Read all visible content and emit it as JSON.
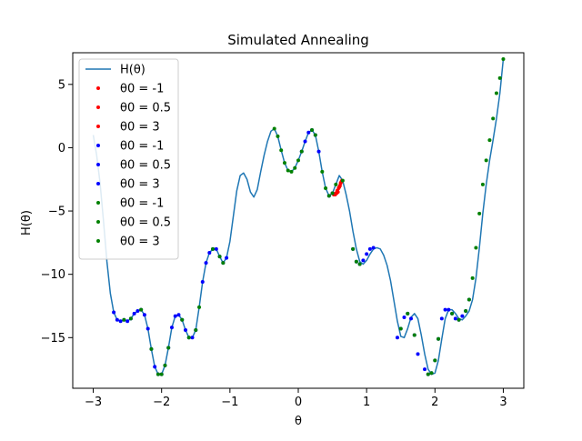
{
  "chart_data": {
    "type": "line",
    "title": "Simulated Annealing",
    "xlabel": "θ",
    "ylabel": "H(θ)",
    "xlim": [
      -3.3,
      3.3
    ],
    "ylim": [
      -19,
      7.5
    ],
    "xticks": [
      -3,
      -2,
      -1,
      0,
      1,
      2,
      3
    ],
    "yticks": [
      -15,
      -10,
      -5,
      0,
      5
    ],
    "grid": false,
    "legend_placement": "top-left",
    "curve": {
      "name": "H(θ)",
      "color": "#1f77b4",
      "x": [
        -3.0,
        -2.95,
        -2.9,
        -2.85,
        -2.8,
        -2.75,
        -2.7,
        -2.65,
        -2.6,
        -2.55,
        -2.5,
        -2.45,
        -2.4,
        -2.35,
        -2.3,
        -2.25,
        -2.2,
        -2.15,
        -2.1,
        -2.05,
        -2.0,
        -1.95,
        -1.9,
        -1.85,
        -1.8,
        -1.75,
        -1.7,
        -1.65,
        -1.6,
        -1.55,
        -1.5,
        -1.45,
        -1.4,
        -1.35,
        -1.3,
        -1.25,
        -1.2,
        -1.15,
        -1.1,
        -1.05,
        -1.0,
        -0.95,
        -0.9,
        -0.85,
        -0.8,
        -0.75,
        -0.7,
        -0.65,
        -0.6,
        -0.55,
        -0.5,
        -0.45,
        -0.4,
        -0.35,
        -0.3,
        -0.25,
        -0.2,
        -0.15,
        -0.1,
        -0.05,
        0.0,
        0.05,
        0.1,
        0.15,
        0.2,
        0.25,
        0.3,
        0.35,
        0.4,
        0.45,
        0.5,
        0.55,
        0.6,
        0.65,
        0.7,
        0.75,
        0.8,
        0.85,
        0.9,
        0.95,
        1.0,
        1.05,
        1.1,
        1.15,
        1.2,
        1.25,
        1.3,
        1.35,
        1.4,
        1.45,
        1.5,
        1.55,
        1.6,
        1.65,
        1.7,
        1.75,
        1.8,
        1.85,
        1.9,
        1.95,
        2.0,
        2.05,
        2.1,
        2.15,
        2.2,
        2.25,
        2.3,
        2.35,
        2.4,
        2.45,
        2.5,
        2.55,
        2.6,
        2.65,
        2.7,
        2.75,
        2.8,
        2.85,
        2.9,
        2.95,
        3.0
      ],
      "y": [
        1.0,
        -0.6,
        -2.8,
        -5.8,
        -9.0,
        -11.5,
        -13.0,
        -13.6,
        -13.7,
        -13.6,
        -13.7,
        -13.5,
        -13.1,
        -12.9,
        -12.8,
        -13.2,
        -14.3,
        -15.9,
        -17.3,
        -17.9,
        -17.9,
        -17.2,
        -15.8,
        -14.2,
        -13.3,
        -13.2,
        -13.6,
        -14.4,
        -15.0,
        -15.0,
        -14.4,
        -12.6,
        -10.6,
        -9.1,
        -8.3,
        -8.0,
        -8.0,
        -8.6,
        -9.1,
        -8.7,
        -7.4,
        -5.4,
        -3.4,
        -2.2,
        -2.0,
        -2.5,
        -3.5,
        -3.9,
        -3.3,
        -1.9,
        -0.6,
        0.5,
        1.3,
        1.5,
        0.9,
        -0.2,
        -1.2,
        -1.8,
        -1.9,
        -1.6,
        -1.0,
        -0.3,
        0.5,
        1.2,
        1.4,
        1.0,
        -0.3,
        -1.9,
        -3.2,
        -3.8,
        -3.6,
        -2.9,
        -2.2,
        -2.6,
        -3.7,
        -5.0,
        -6.6,
        -8.0,
        -9.0,
        -9.2,
        -8.9,
        -8.4,
        -8.0,
        -7.9,
        -8.0,
        -8.5,
        -9.3,
        -10.5,
        -12.1,
        -13.7,
        -14.9,
        -15.0,
        -14.3,
        -13.4,
        -13.1,
        -13.5,
        -14.8,
        -16.3,
        -17.5,
        -17.9,
        -17.8,
        -16.8,
        -15.1,
        -13.5,
        -12.8,
        -12.8,
        -13.1,
        -13.5,
        -13.6,
        -13.3,
        -12.9,
        -12.0,
        -10.3,
        -7.9,
        -5.2,
        -2.9,
        -1.0,
        0.6,
        2.3,
        4.3,
        7.0
      ],
      "width": 1.5
    },
    "series": [
      {
        "name": "θ0 = -1",
        "color": "#ff0000",
        "x": [
          0.5,
          0.52,
          0.55,
          0.57,
          0.6,
          0.62,
          0.64
        ],
        "y": [
          -3.6,
          -3.7,
          -3.6,
          -3.4,
          -3.1,
          -2.8,
          -2.6
        ]
      },
      {
        "name": "θ0 = 0.5",
        "color": "#ff0000",
        "x": [
          0.53,
          0.56,
          0.59,
          0.63
        ],
        "y": [
          -3.7,
          -3.6,
          -3.2,
          -2.7
        ]
      },
      {
        "name": "θ0 = 3",
        "color": "#ff0000",
        "x": [
          0.54,
          0.58,
          0.61
        ],
        "y": [
          -3.7,
          -3.5,
          -3.0
        ]
      },
      {
        "name": "θ0 = -1",
        "color": "#0000ff",
        "x": [
          -2.65,
          -2.6,
          -2.55,
          -2.5,
          -2.45,
          -2.1,
          -2.05,
          -2.0,
          -1.95,
          -1.9,
          -1.75,
          -1.7,
          -1.65,
          -1.6,
          -1.55,
          -1.5,
          -1.3,
          -1.25,
          -1.2,
          -1.15,
          -1.1,
          -1.05,
          0.25,
          0.3,
          0.45,
          0.5,
          0.85,
          0.9,
          0.95,
          1.45,
          1.5,
          1.55,
          1.85,
          1.9,
          1.95,
          2.0,
          2.05,
          2.1
        ],
        "y": [
          -13.6,
          -13.7,
          -13.6,
          -13.7,
          -13.5,
          -17.3,
          -17.9,
          -17.9,
          -17.2,
          -15.8,
          -13.2,
          -13.6,
          -14.4,
          -15.0,
          -15.0,
          -14.4,
          -8.3,
          -8.0,
          -8.0,
          -8.6,
          -9.1,
          -8.7,
          1.0,
          -0.3,
          -3.8,
          -3.6,
          -9.0,
          -9.2,
          -8.9,
          -15.0,
          -14.3,
          -13.4,
          -17.5,
          -17.9,
          -17.8,
          -16.8,
          -15.1,
          -13.5
        ]
      },
      {
        "name": "θ0 = 0.5",
        "color": "#0000ff",
        "x": [
          -2.7,
          -2.35,
          -2.3,
          -2.25,
          -1.8,
          -1.4,
          -1.35,
          0.05,
          0.1,
          0.15,
          0.2,
          0.8,
          1.6,
          1.65,
          2.15,
          2.2,
          2.25,
          2.3
        ],
        "y": [
          -13.0,
          -12.9,
          -12.8,
          -13.2,
          -13.3,
          -10.6,
          -9.1,
          -0.3,
          0.5,
          1.2,
          1.4,
          -8.0,
          -13.1,
          -13.5,
          -12.8,
          -12.8,
          -13.1,
          -13.5
        ]
      },
      {
        "name": "θ0 = 3",
        "color": "#0000ff",
        "x": [
          -2.4,
          -2.2,
          -2.15,
          -1.85,
          1.0,
          1.05,
          1.1,
          1.7,
          1.75,
          2.35,
          2.4,
          2.45,
          2.5
        ],
        "y": [
          -13.1,
          -14.3,
          -15.9,
          -14.2,
          -8.4,
          -8.0,
          -7.9,
          -14.8,
          -16.3,
          -13.6,
          -13.3,
          -12.9,
          -12.0
        ]
      },
      {
        "name": "θ0 = -1",
        "color": "#008000",
        "x": [
          -2.55,
          -2.45,
          -2.3,
          -2.15,
          -2.05,
          -2.0,
          -1.95,
          -1.9,
          -1.7,
          -1.6,
          -1.5,
          -1.45,
          -1.25,
          -1.15,
          -1.1,
          -0.35,
          -0.3,
          -0.25,
          -0.2,
          -0.15,
          -0.1,
          -0.05,
          0.0,
          0.05
        ],
        "y": [
          -13.6,
          -13.5,
          -12.8,
          -15.9,
          -17.9,
          -17.9,
          -17.2,
          -15.8,
          -13.6,
          -15.0,
          -14.4,
          -12.6,
          -8.0,
          -8.6,
          -9.1,
          1.5,
          0.9,
          -0.2,
          -1.2,
          -1.8,
          -1.9,
          -1.6,
          -1.0,
          -0.3
        ]
      },
      {
        "name": "θ0 = 0.5",
        "color": "#008000",
        "x": [
          0.2,
          0.25,
          0.35,
          0.4,
          0.45,
          0.5,
          0.55,
          0.65,
          0.8,
          0.85,
          0.9,
          1.5,
          1.6,
          1.7,
          1.9,
          1.95,
          2.0,
          2.05,
          2.25,
          2.35
        ],
        "y": [
          1.4,
          1.0,
          -1.9,
          -3.2,
          -3.8,
          -3.6,
          -2.9,
          -2.6,
          -8.0,
          -9.0,
          -9.2,
          -14.3,
          -13.1,
          -14.8,
          -17.9,
          -17.8,
          -16.8,
          -15.1,
          -13.1,
          -13.6
        ]
      },
      {
        "name": "θ0 = 3",
        "color": "#008000",
        "x": [
          2.55,
          2.6,
          2.65,
          2.7,
          2.75,
          2.8,
          2.85,
          2.9,
          2.95,
          3.0,
          2.5,
          2.45
        ],
        "y": [
          -10.3,
          -7.9,
          -5.2,
          -2.9,
          -1.0,
          0.6,
          2.3,
          4.3,
          5.5,
          7.0,
          -12.0,
          -12.9
        ]
      }
    ]
  }
}
